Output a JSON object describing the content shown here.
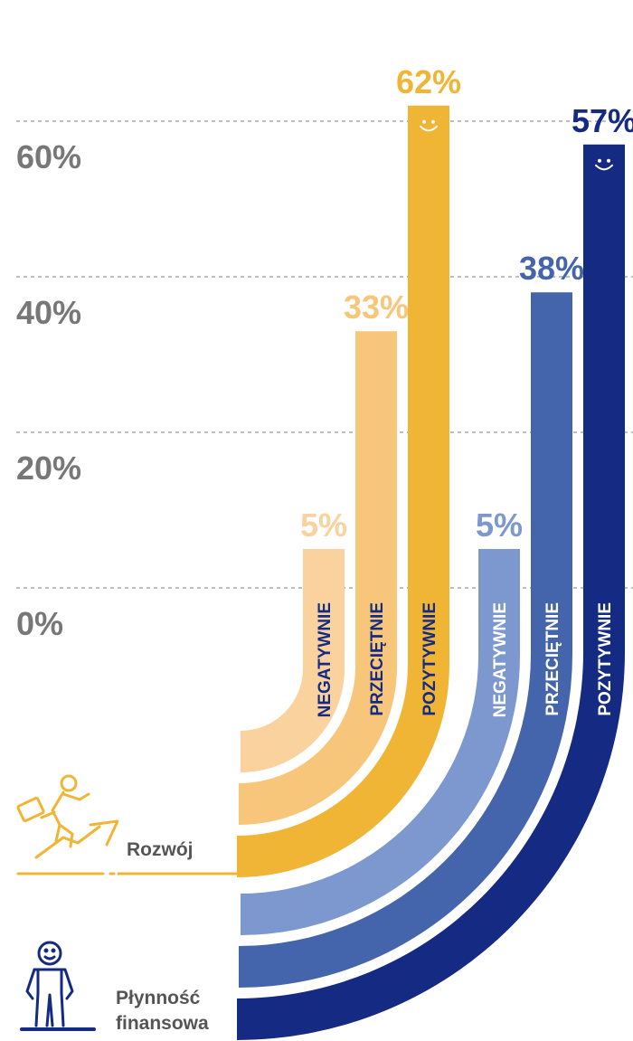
{
  "chart_data": {
    "type": "bar",
    "categories": [
      "NEGATYWNIE",
      "PRZECIĘTNIE",
      "POZYTYWNIE"
    ],
    "yticks": [
      "0%",
      "20%",
      "40%",
      "60%"
    ],
    "ylim": [
      0,
      62
    ],
    "grid": true,
    "series": [
      {
        "name": "Rozwój",
        "values": [
          5,
          33,
          62
        ],
        "value_labels": [
          "5%",
          "33%",
          "62%"
        ],
        "colors": [
          "#FAD29E",
          "#F7C67A",
          "#F0B535"
        ]
      },
      {
        "name": "Płynność finansowa",
        "name_lines": [
          "Płynność",
          "finansowa"
        ],
        "values": [
          5,
          38,
          57
        ],
        "value_labels": [
          "5%",
          "38%",
          "57%"
        ],
        "colors": [
          "#7C98CF",
          "#4464AC",
          "#152B83"
        ]
      }
    ]
  },
  "icons": {
    "group1": "climbing-businessman-icon",
    "group2": "standing-person-icon",
    "max_marker": "smiley-icon"
  },
  "colors": {
    "grid": "#999999",
    "tick": "#777777",
    "group_label": "#555555",
    "category_text_dark": "#152B83"
  }
}
